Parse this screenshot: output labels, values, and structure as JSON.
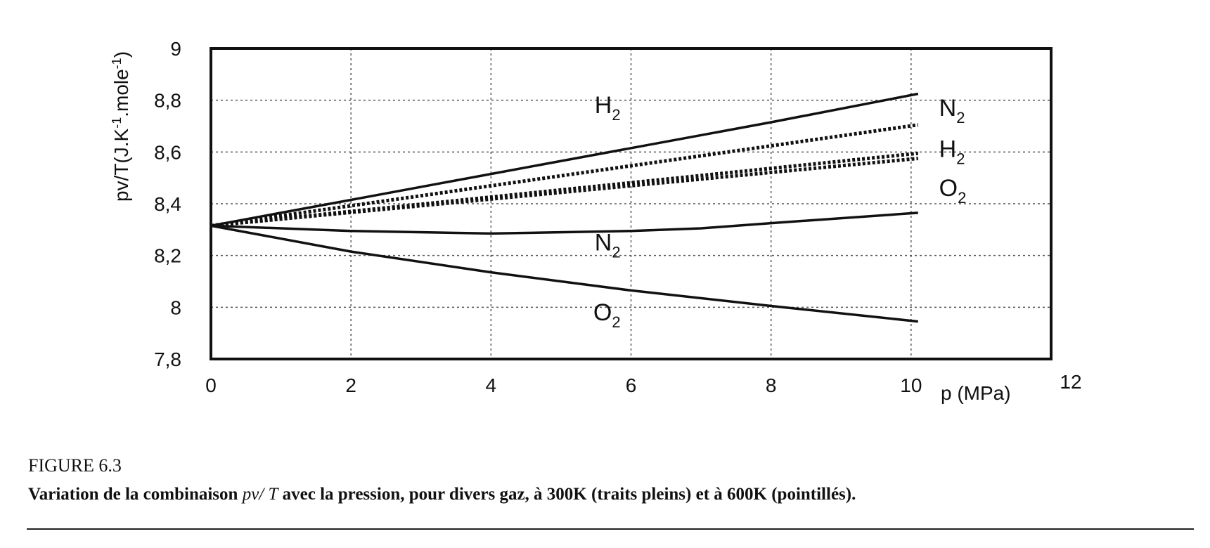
{
  "chart_data": {
    "type": "line",
    "xlabel": "p (MPa)",
    "ylabel": "pv/T(J.K⁻¹.mole⁻¹)",
    "xlim": [
      0,
      12
    ],
    "ylim": [
      7.8,
      9
    ],
    "xticks": [
      0,
      2,
      4,
      6,
      8,
      10,
      12
    ],
    "xtick_labels": [
      "0",
      "2",
      "4",
      "6",
      "8",
      "10",
      "12"
    ],
    "yticks": [
      7.8,
      8,
      8.2,
      8.4,
      8.6,
      8.8,
      9
    ],
    "ytick_labels": [
      "7,8",
      "8",
      "8,2",
      "8,4",
      "8,6",
      "8,8",
      "9"
    ],
    "grid": true,
    "series": [
      {
        "name": "H2",
        "temperature": "300K",
        "style": "solid",
        "x": [
          0,
          2,
          4,
          6,
          8,
          10.1
        ],
        "y": [
          8.315,
          8.415,
          8.515,
          8.615,
          8.715,
          8.825
        ]
      },
      {
        "name": "N2",
        "temperature": "300K",
        "style": "solid",
        "x": [
          0,
          2,
          4,
          6,
          7,
          8,
          10.1
        ],
        "y": [
          8.315,
          8.295,
          8.285,
          8.295,
          8.305,
          8.325,
          8.365
        ]
      },
      {
        "name": "O2",
        "temperature": "300K",
        "style": "solid",
        "x": [
          0,
          2,
          4,
          6,
          8,
          10.1
        ],
        "y": [
          8.315,
          8.215,
          8.135,
          8.065,
          8.005,
          7.945
        ]
      },
      {
        "name": "N2",
        "temperature": "600K",
        "style": "dotted",
        "x": [
          0,
          10.1
        ],
        "y": [
          8.315,
          8.705
        ]
      },
      {
        "name": "H2",
        "temperature": "600K",
        "style": "dotted",
        "x": [
          0,
          10.1
        ],
        "y": [
          8.315,
          8.595
        ]
      },
      {
        "name": "O2",
        "temperature": "600K",
        "style": "dotted",
        "x": [
          0,
          10.1
        ],
        "y": [
          8.315,
          8.575
        ]
      }
    ],
    "annotations": [
      {
        "text": "H2",
        "x": 5.85,
        "y": 8.75,
        "anchor": "end"
      },
      {
        "text": "N2",
        "x": 5.85,
        "y": 8.22,
        "anchor": "end"
      },
      {
        "text": "O2",
        "x": 5.85,
        "y": 7.95,
        "anchor": "end"
      },
      {
        "text": "N2",
        "x": 10.4,
        "y": 8.74,
        "anchor": "start"
      },
      {
        "text": "H2",
        "x": 10.4,
        "y": 8.58,
        "anchor": "start"
      },
      {
        "text": "O2",
        "x": 10.4,
        "y": 8.43,
        "anchor": "start"
      }
    ]
  },
  "caption": {
    "figure_number": "FIGURE 6.3",
    "text_before": "Variation de la combinaison ",
    "formula": "pv/ T",
    "text_after": " avec la pression, pour divers gaz, à 300K (traits pleins) et à 600K (pointillés)."
  }
}
